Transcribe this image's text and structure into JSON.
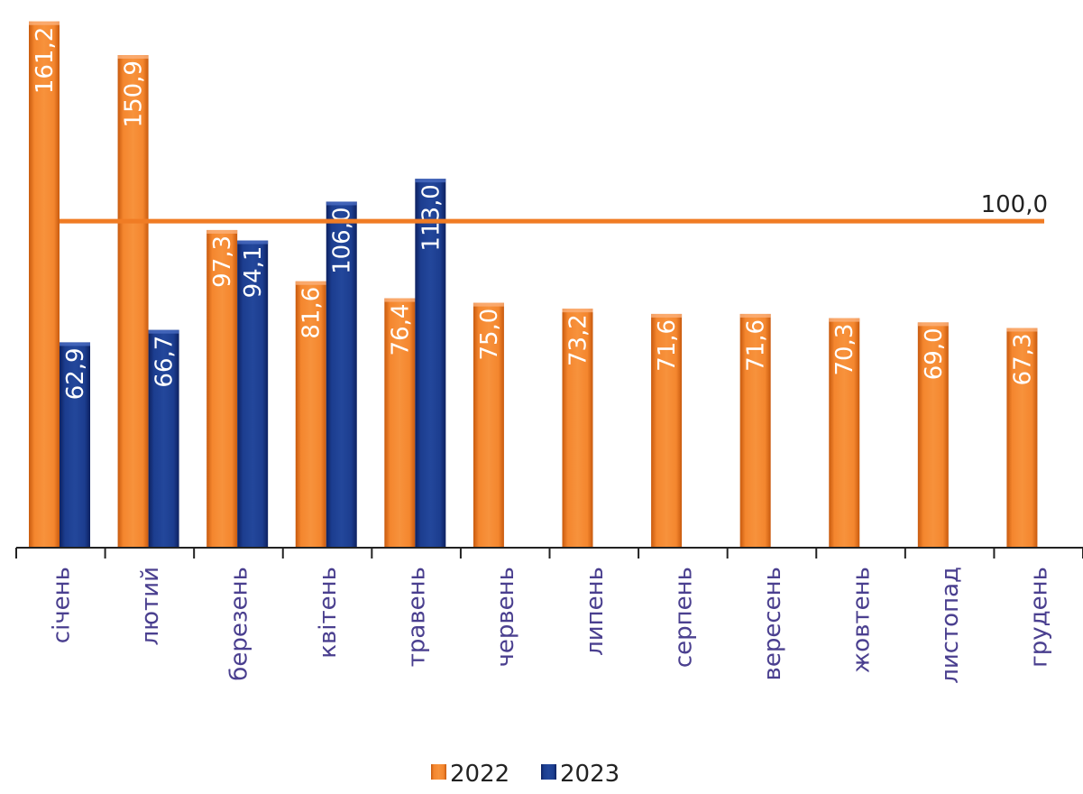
{
  "chart_data": {
    "type": "bar",
    "categories": [
      "січень",
      "лютий",
      "березень",
      "квітень",
      "травень",
      "червень",
      "липень",
      "серпень",
      "вересень",
      "жовтень",
      "листопад",
      "грудень"
    ],
    "series": [
      {
        "name": "2022",
        "color": "#f07c24",
        "values": [
          161.2,
          150.9,
          97.3,
          81.6,
          76.4,
          75.0,
          73.2,
          71.6,
          71.6,
          70.3,
          69.0,
          67.3
        ],
        "labels": [
          "161,2",
          "150,9",
          "97,3",
          "81,6",
          "76,4",
          "75,0",
          "73,2",
          "71,6",
          "71,6",
          "70,3",
          "69,0",
          "67,3"
        ]
      },
      {
        "name": "2023",
        "color": "#1a3a8a",
        "values": [
          62.9,
          66.7,
          94.1,
          106.0,
          113.0,
          null,
          null,
          null,
          null,
          null,
          null,
          null
        ],
        "labels": [
          "62,9",
          "66,7",
          "94,1",
          "106,0",
          "113,0",
          "",
          "",
          "",
          "",
          "",
          "",
          ""
        ]
      }
    ],
    "reference_line": {
      "value": 100.0,
      "label": "100,0",
      "color": "#f07c24"
    },
    "ylim": [
      0,
      165
    ],
    "legend": "bottom-center",
    "grid": false
  }
}
